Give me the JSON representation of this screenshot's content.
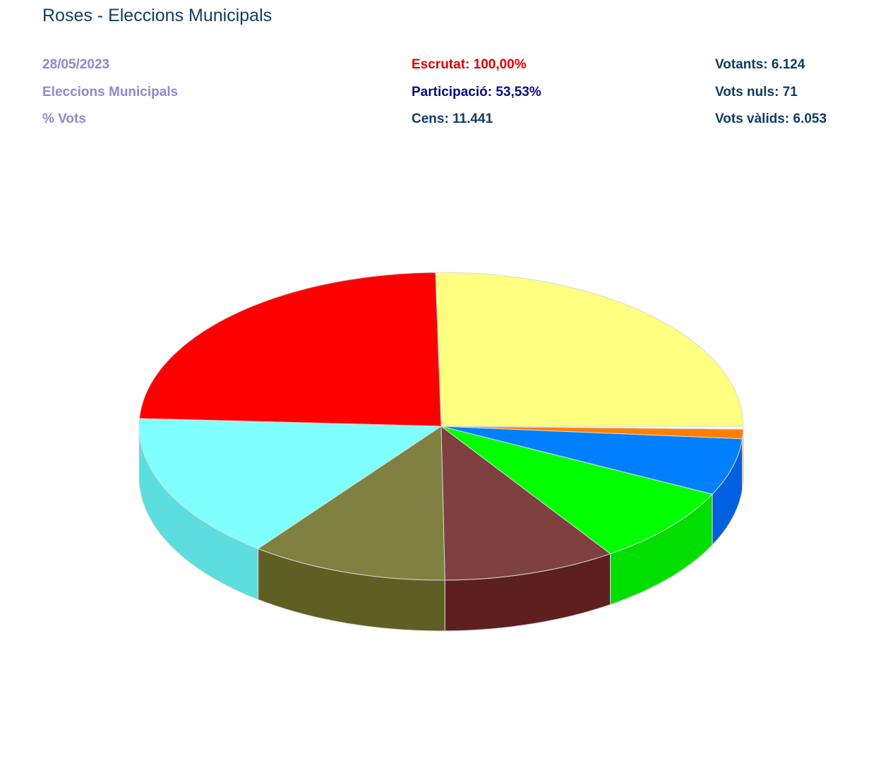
{
  "header": {
    "title": "Roses - Eleccions Municipals",
    "date": "28/05/2023",
    "election_type": "Eleccions Municipals",
    "metric": "% Vots",
    "escrutat": "Escrutat: 100,00%",
    "participacio": "Participació: 53,53%",
    "cens": "Cens: 11.441",
    "votants": "Votants: 6.124",
    "vots_nuls": "Vots nuls: 71",
    "vots_valids": "Vots vàlids: 6.053"
  },
  "colors": {
    "title": "#0f3d66",
    "meta": "#8c8ad0",
    "escrutat": "#e00000",
    "participacio": "#0a0a80"
  },
  "chart_data": {
    "type": "pie",
    "title": "",
    "three_d": true,
    "start_angle_deg": 0,
    "direction": "counterclockwise",
    "unit": "% Vots",
    "slices": [
      {
        "value": 25.4,
        "color": "#ffff80",
        "side_color": "#e6e673"
      },
      {
        "value": 24.0,
        "color": "#ff0000",
        "side_color": "#cc0000"
      },
      {
        "value": 15.5,
        "color": "#80ffff",
        "side_color": "#5cdede"
      },
      {
        "value": 10.6,
        "color": "#808040",
        "side_color": "#5f5f23"
      },
      {
        "value": 9.3,
        "color": "#7f4040",
        "side_color": "#5e1f1f"
      },
      {
        "value": 8.3,
        "color": "#00ff00",
        "side_color": "#00df00"
      },
      {
        "value": 6.0,
        "color": "#0080ff",
        "side_color": "#0060df"
      },
      {
        "value": 1.0,
        "color": "#ff8000",
        "side_color": "#e06800"
      },
      {
        "value": 0.3,
        "color": "#ffffff",
        "side_color": "#f2f2f2"
      }
    ]
  }
}
